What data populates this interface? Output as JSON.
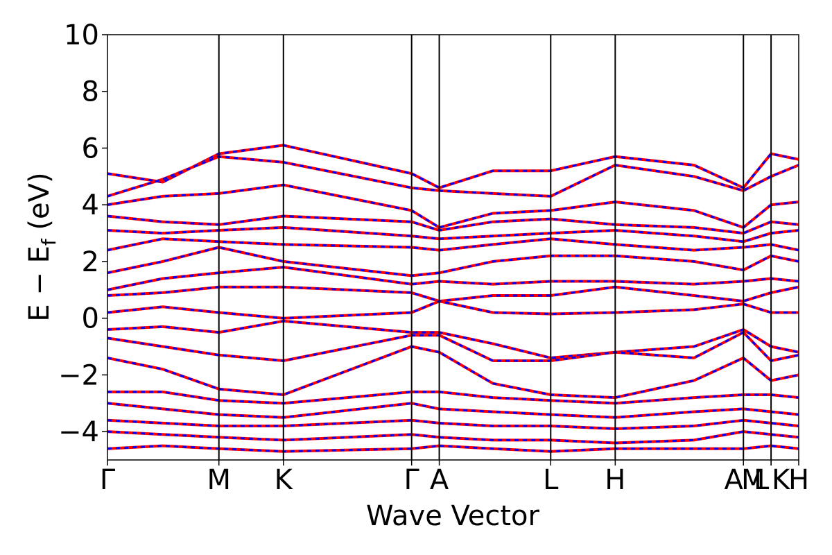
{
  "chart_data": {
    "type": "line",
    "title": "",
    "xlabel": "Wave Vector",
    "ylabel_parts": {
      "main": "E − E",
      "subscript": "f",
      "unit": " (eV)"
    },
    "ylim": [
      -5,
      10
    ],
    "yticks": [
      10,
      8,
      6,
      4,
      2,
      0,
      -2,
      -4
    ],
    "ytick_labels": [
      "10",
      "8",
      "6",
      "4",
      "2",
      "0",
      "−2",
      "−4"
    ],
    "xlim": [
      0,
      8.25
    ],
    "kpoints": [
      {
        "label": "Γ",
        "x": 0.0
      },
      {
        "label": "M",
        "x": 1.33
      },
      {
        "label": "K",
        "x": 2.1
      },
      {
        "label": "Γ",
        "x": 3.63
      },
      {
        "label": "A",
        "x": 3.96
      },
      {
        "label": "L",
        "x": 5.29
      },
      {
        "label": "H",
        "x": 6.06
      },
      {
        "label": "A",
        "x": 7.59
      },
      {
        "label": "M",
        "x": 7.59
      },
      {
        "label": "L",
        "x": 7.92
      },
      {
        "label": "K",
        "x": 7.92
      },
      {
        "label": "H",
        "x": 8.25
      }
    ],
    "kpoint_label_display": [
      "Γ",
      "M",
      "K",
      "Γ",
      "A",
      "L",
      "H",
      "A",
      "M",
      "L",
      "K",
      "H"
    ],
    "grid": false,
    "series_styles": [
      {
        "color": "#ff0000",
        "dash": "solid",
        "width": 4
      },
      {
        "color": "#0000ff",
        "dash": "dashed",
        "width": 3
      }
    ],
    "bands": [
      {
        "x": [
          0,
          0.66,
          1.33,
          2.1,
          3.63,
          3.96,
          4.6,
          5.29,
          6.06,
          7.0,
          7.59,
          7.92,
          8.25
        ],
        "y": [
          5.1,
          4.8,
          5.8,
          6.1,
          5.1,
          4.6,
          5.2,
          5.2,
          5.7,
          5.4,
          4.6,
          5.8,
          5.6
        ]
      },
      {
        "x": [
          0,
          0.66,
          1.33,
          2.1,
          3.63,
          3.96,
          4.6,
          5.29,
          6.06,
          7.0,
          7.59,
          7.92,
          8.25
        ],
        "y": [
          4.3,
          4.9,
          5.7,
          5.5,
          4.6,
          4.5,
          4.4,
          4.3,
          5.4,
          5.0,
          4.5,
          5.0,
          5.4
        ]
      },
      {
        "x": [
          0,
          0.66,
          1.33,
          2.1,
          3.63,
          3.96,
          4.6,
          5.29,
          6.06,
          7.0,
          7.59,
          7.92,
          8.25
        ],
        "y": [
          4.0,
          4.3,
          4.4,
          4.7,
          3.8,
          3.2,
          3.7,
          3.8,
          4.1,
          3.8,
          3.2,
          4.0,
          4.1
        ]
      },
      {
        "x": [
          0,
          0.66,
          1.33,
          2.1,
          3.63,
          3.96,
          4.6,
          5.29,
          6.06,
          7.0,
          7.59,
          7.92,
          8.25
        ],
        "y": [
          3.6,
          3.4,
          3.3,
          3.6,
          3.4,
          3.1,
          3.4,
          3.5,
          3.3,
          3.2,
          3.0,
          3.4,
          3.3
        ]
      },
      {
        "x": [
          0,
          0.66,
          1.33,
          2.1,
          3.63,
          3.96,
          4.6,
          5.29,
          6.06,
          7.0,
          7.59,
          7.92,
          8.25
        ],
        "y": [
          3.1,
          3.0,
          3.1,
          3.2,
          2.9,
          2.8,
          2.9,
          3.0,
          3.1,
          2.9,
          2.7,
          3.0,
          3.1
        ]
      },
      {
        "x": [
          0,
          0.66,
          1.33,
          2.1,
          3.63,
          3.96,
          4.6,
          5.29,
          6.06,
          7.0,
          7.59,
          7.92,
          8.25
        ],
        "y": [
          2.4,
          2.8,
          2.7,
          2.6,
          2.5,
          2.4,
          2.6,
          2.8,
          2.6,
          2.4,
          2.5,
          2.6,
          2.4
        ]
      },
      {
        "x": [
          0,
          0.66,
          1.33,
          2.1,
          3.63,
          3.96,
          4.6,
          5.29,
          6.06,
          7.0,
          7.59,
          7.92,
          8.25
        ],
        "y": [
          1.6,
          2.0,
          2.5,
          2.0,
          1.5,
          1.6,
          2.0,
          2.2,
          2.2,
          2.0,
          1.7,
          2.2,
          2.0
        ]
      },
      {
        "x": [
          0,
          0.66,
          1.33,
          2.1,
          3.63,
          3.96,
          4.6,
          5.29,
          6.06,
          7.0,
          7.59,
          7.92,
          8.25
        ],
        "y": [
          1.0,
          1.4,
          1.6,
          1.8,
          1.2,
          1.3,
          1.2,
          1.3,
          1.3,
          1.2,
          1.3,
          1.4,
          1.3
        ]
      },
      {
        "x": [
          0,
          0.66,
          1.33,
          2.1,
          3.63,
          3.96,
          4.6,
          5.29,
          6.06,
          7.0,
          7.59,
          7.92,
          8.25
        ],
        "y": [
          0.8,
          0.9,
          1.1,
          1.1,
          0.9,
          0.6,
          0.8,
          0.8,
          1.1,
          0.8,
          0.6,
          0.9,
          1.1
        ]
      },
      {
        "x": [
          0,
          0.66,
          1.33,
          2.1,
          3.63,
          3.96,
          4.6,
          5.29,
          6.06,
          7.0,
          7.59,
          7.92,
          8.25
        ],
        "y": [
          0.2,
          0.4,
          0.2,
          0.0,
          0.2,
          0.6,
          0.2,
          0.15,
          0.2,
          0.3,
          0.5,
          0.2,
          0.2
        ]
      },
      {
        "x": [
          0,
          0.66,
          1.33,
          2.1,
          3.63,
          3.96,
          4.6,
          5.29,
          6.06,
          7.0,
          7.59,
          7.92,
          8.25
        ],
        "y": [
          -0.4,
          -0.3,
          -0.5,
          -0.1,
          -0.5,
          -0.5,
          -0.9,
          -1.4,
          -1.2,
          -1.0,
          -0.4,
          -1.0,
          -1.2
        ]
      },
      {
        "x": [
          0,
          0.66,
          1.33,
          2.1,
          3.63,
          3.96,
          4.6,
          5.29,
          6.06,
          7.0,
          7.59,
          7.92,
          8.25
        ],
        "y": [
          -0.7,
          -1.0,
          -1.3,
          -1.5,
          -0.6,
          -0.6,
          -1.5,
          -1.5,
          -1.2,
          -1.4,
          -0.5,
          -1.5,
          -1.3
        ]
      },
      {
        "x": [
          0,
          0.66,
          1.33,
          2.1,
          3.63,
          3.96,
          4.6,
          5.29,
          6.06,
          7.0,
          7.59,
          7.92,
          8.25
        ],
        "y": [
          -1.4,
          -1.8,
          -2.5,
          -2.7,
          -1.0,
          -1.2,
          -2.3,
          -2.7,
          -2.8,
          -2.2,
          -1.4,
          -2.2,
          -2.0
        ]
      },
      {
        "x": [
          0,
          0.66,
          1.33,
          2.1,
          3.63,
          3.96,
          4.6,
          5.29,
          6.06,
          7.0,
          7.59,
          7.92,
          8.25
        ],
        "y": [
          -2.6,
          -2.6,
          -2.9,
          -3.0,
          -2.6,
          -2.6,
          -2.8,
          -2.9,
          -3.0,
          -2.8,
          -2.7,
          -2.7,
          -2.8
        ]
      },
      {
        "x": [
          0,
          0.66,
          1.33,
          2.1,
          3.63,
          3.96,
          4.6,
          5.29,
          6.06,
          7.0,
          7.59,
          7.92,
          8.25
        ],
        "y": [
          -3.0,
          -3.2,
          -3.4,
          -3.5,
          -3.0,
          -3.2,
          -3.3,
          -3.4,
          -3.5,
          -3.3,
          -3.2,
          -3.3,
          -3.4
        ]
      },
      {
        "x": [
          0,
          0.66,
          1.33,
          2.1,
          3.63,
          3.96,
          4.6,
          5.29,
          6.06,
          7.0,
          7.59,
          7.92,
          8.25
        ],
        "y": [
          -3.6,
          -3.7,
          -3.8,
          -3.8,
          -3.6,
          -3.7,
          -3.8,
          -3.8,
          -3.9,
          -3.8,
          -3.6,
          -3.7,
          -3.8
        ]
      },
      {
        "x": [
          0,
          0.66,
          1.33,
          2.1,
          3.63,
          3.96,
          4.6,
          5.29,
          6.06,
          7.0,
          7.59,
          7.92,
          8.25
        ],
        "y": [
          -4.0,
          -4.1,
          -4.2,
          -4.3,
          -4.1,
          -4.2,
          -4.3,
          -4.3,
          -4.4,
          -4.3,
          -4.0,
          -4.1,
          -4.2
        ]
      },
      {
        "x": [
          0,
          0.66,
          1.33,
          2.1,
          3.63,
          3.96,
          4.6,
          5.29,
          6.06,
          7.0,
          7.59,
          7.92,
          8.25
        ],
        "y": [
          -4.6,
          -4.5,
          -4.6,
          -4.7,
          -4.6,
          -4.5,
          -4.6,
          -4.7,
          -4.6,
          -4.6,
          -4.6,
          -4.5,
          -4.6
        ]
      }
    ]
  }
}
